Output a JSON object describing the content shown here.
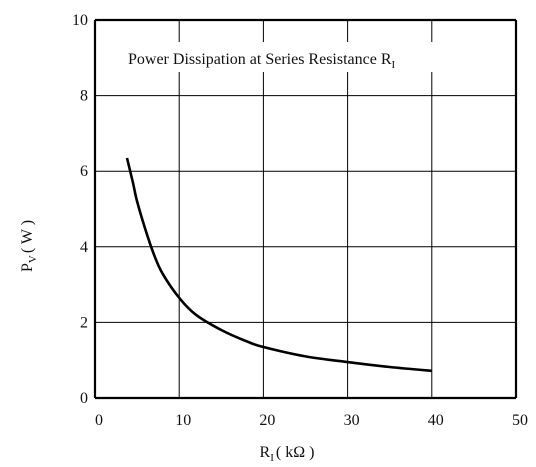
{
  "chart_data": {
    "type": "line",
    "title": "Power Dissipation at Series Resistance R",
    "title_subscript": "I",
    "xlabel": "R",
    "xlabel_subscript": "I",
    "xlabel_unit": "( kΩ )",
    "ylabel": "P",
    "ylabel_subscript": "V",
    "ylabel_unit": "( W )",
    "xlim": [
      0,
      50
    ],
    "ylim": [
      0,
      10
    ],
    "xticks": [
      "0",
      "10",
      "20",
      "30",
      "40",
      "50"
    ],
    "yticks": [
      "0",
      "2",
      "4",
      "6",
      "8",
      "10"
    ],
    "grid": true,
    "series": [
      {
        "x": [
          3.8,
          4.5,
          5,
          6,
          7,
          8,
          10,
          12,
          15,
          18,
          20,
          25,
          30,
          35,
          40
        ],
        "y": [
          6.35,
          5.7,
          5.2,
          4.45,
          3.8,
          3.3,
          2.65,
          2.2,
          1.8,
          1.5,
          1.35,
          1.1,
          0.95,
          0.82,
          0.72
        ]
      }
    ]
  }
}
